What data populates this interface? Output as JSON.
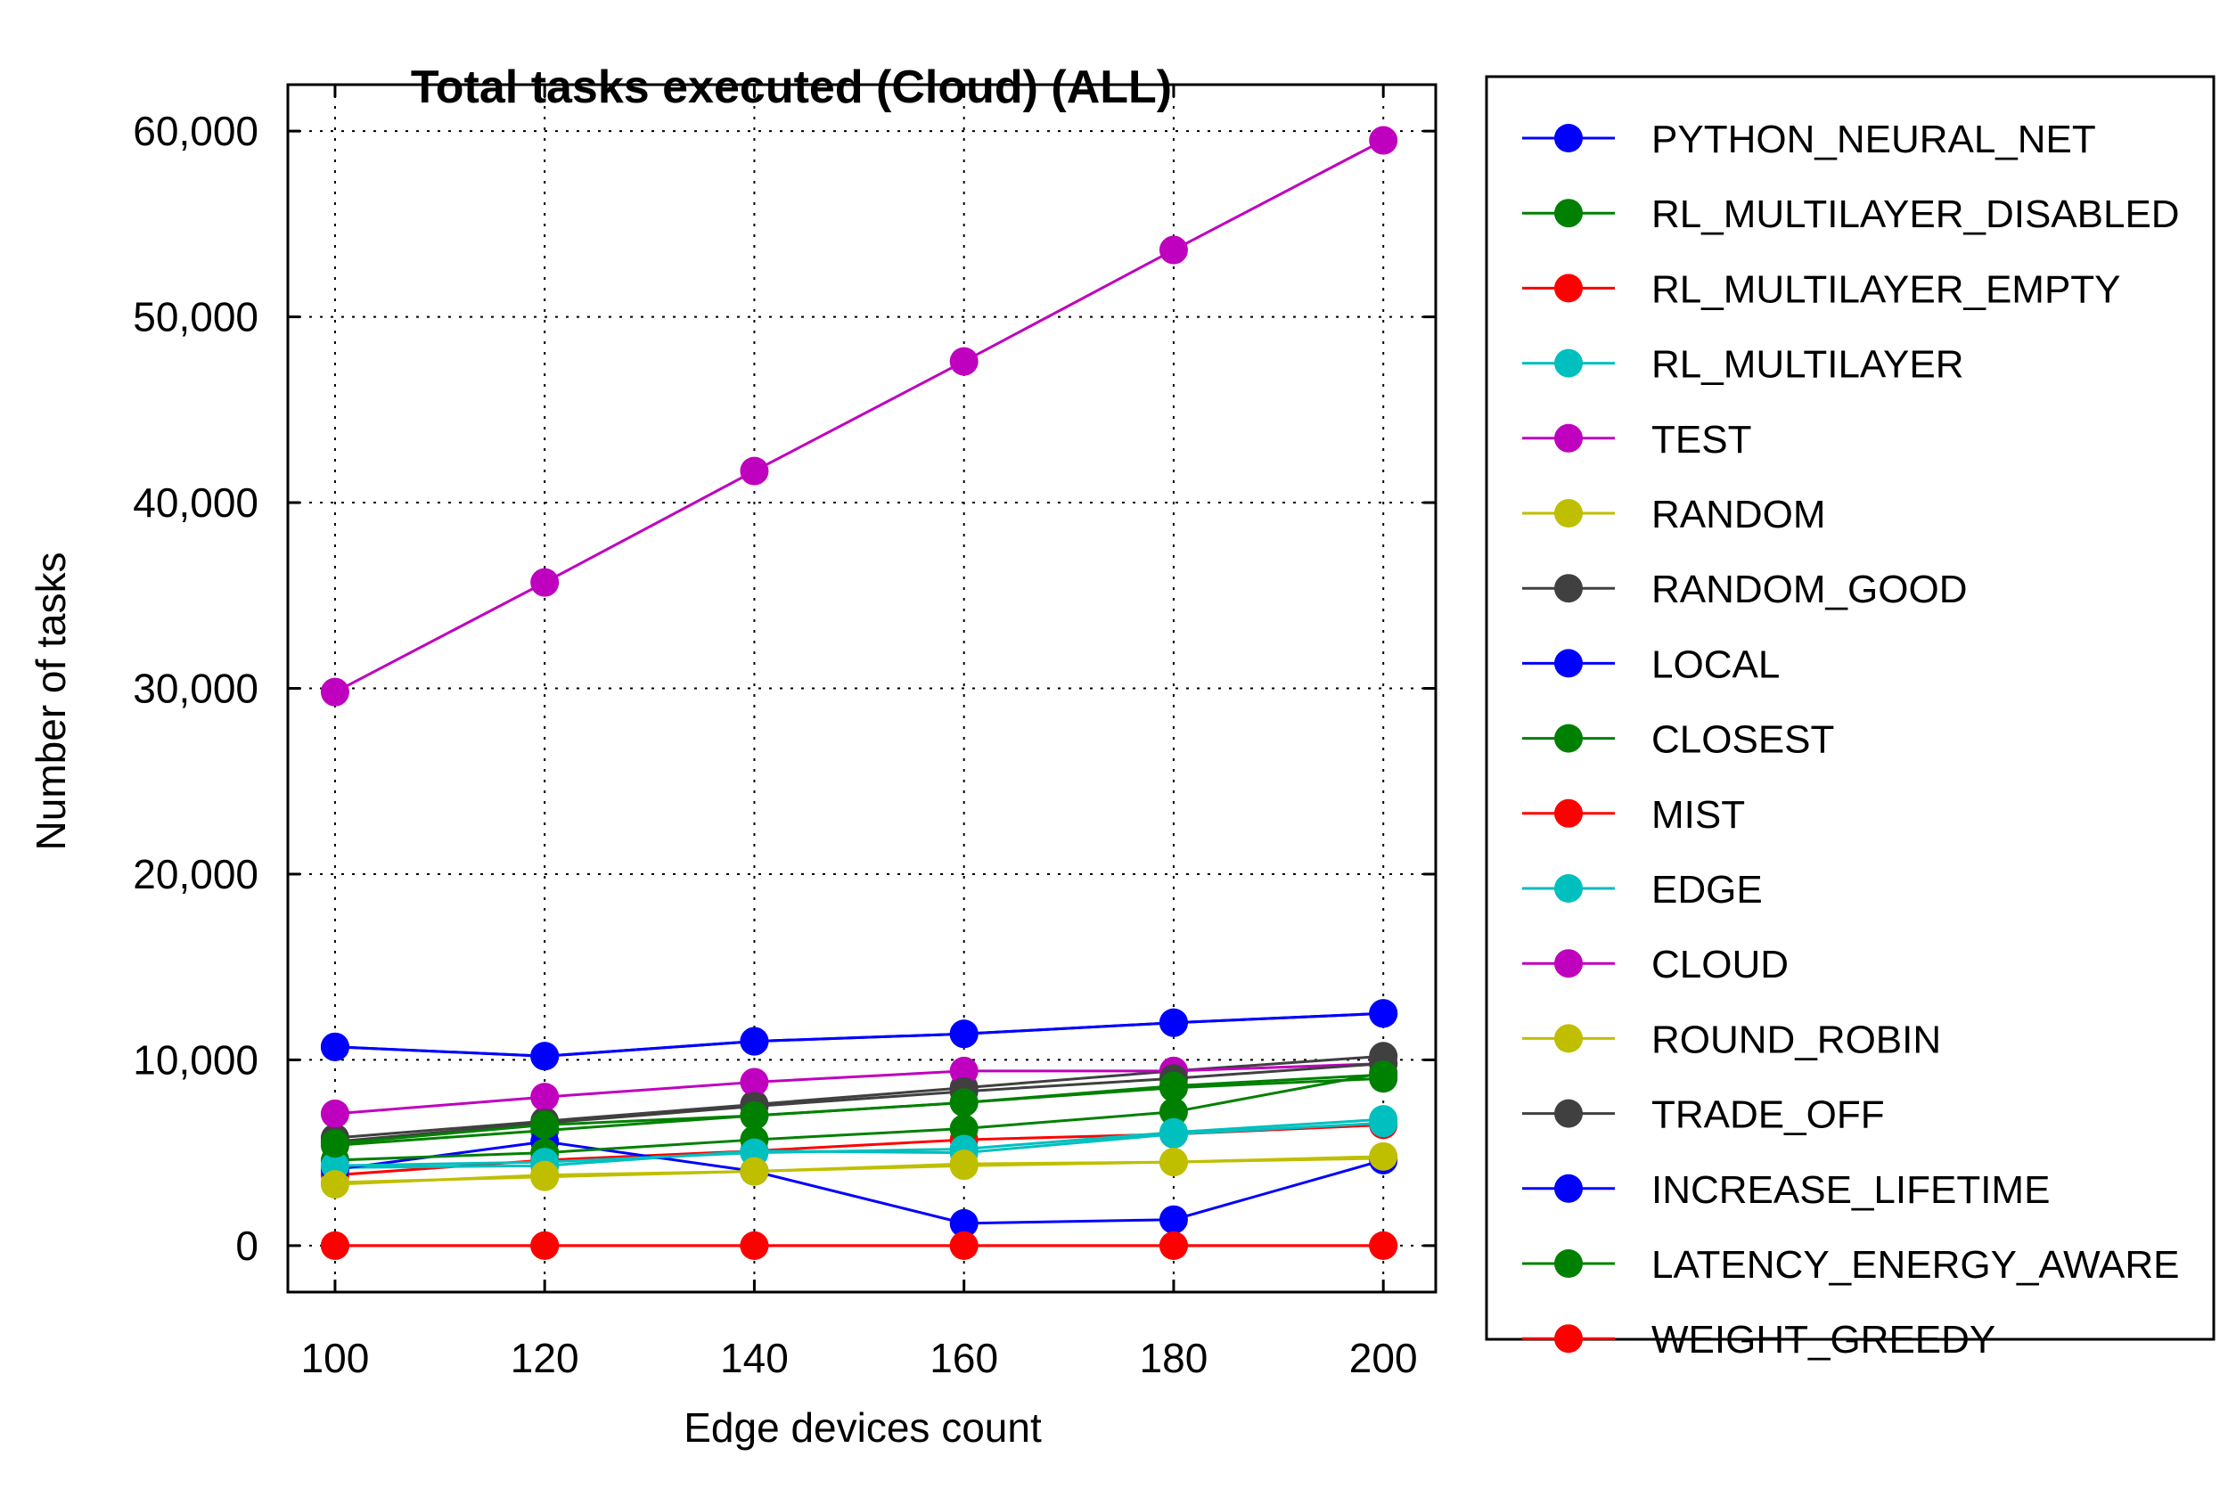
{
  "chart_data": {
    "type": "line",
    "title": "Total tasks executed (Cloud) (ALL)",
    "xlabel": "Edge devices count",
    "ylabel": "Number of tasks",
    "x": [
      100,
      120,
      140,
      160,
      180,
      200
    ],
    "x_tick_labels": [
      "100",
      "120",
      "140",
      "160",
      "180",
      "200"
    ],
    "y_ticks": [
      0,
      10000,
      20000,
      30000,
      40000,
      50000,
      60000
    ],
    "y_tick_labels": [
      "0",
      "10,000",
      "20,000",
      "30,000",
      "40,000",
      "50,000",
      "60,000"
    ],
    "xlim": [
      95.5,
      205
    ],
    "ylim": [
      -2500,
      62500
    ],
    "grid": true,
    "legend_position": "right-outside",
    "series": [
      {
        "name": "PYTHON_NEURAL_NET",
        "color": "#0000ff",
        "values": [
          10700,
          10200,
          11000,
          11400,
          12000,
          12500
        ]
      },
      {
        "name": "RL_MULTILAYER_DISABLED",
        "color": "#008000",
        "values": [
          5400,
          6200,
          7000,
          7700,
          8500,
          9000
        ]
      },
      {
        "name": "RL_MULTILAYER_EMPTY",
        "color": "#ff0000",
        "values": [
          3800,
          4600,
          5100,
          5700,
          6000,
          6500
        ]
      },
      {
        "name": "RL_MULTILAYER",
        "color": "#00bfbf",
        "values": [
          4200,
          4300,
          5100,
          5000,
          6000,
          6600
        ]
      },
      {
        "name": "TEST",
        "color": "#bf00bf",
        "values": [
          29800,
          35700,
          41700,
          47600,
          53600,
          59500
        ]
      },
      {
        "name": "RANDOM",
        "color": "#bfbf00",
        "values": [
          3400,
          3700,
          4000,
          4300,
          4500,
          4700
        ]
      },
      {
        "name": "RANDOM_GOOD",
        "color": "#404040",
        "values": [
          5800,
          6700,
          7600,
          8500,
          9400,
          10200
        ]
      },
      {
        "name": "LOCAL",
        "color": "#0000ff",
        "values": [
          4100,
          5600,
          4000,
          1200,
          1400,
          4600
        ]
      },
      {
        "name": "CLOSEST",
        "color": "#008000",
        "values": [
          4600,
          5000,
          5700,
          6300,
          7200,
          9300
        ]
      },
      {
        "name": "MIST",
        "color": "#ff0000",
        "values": [
          0,
          0,
          0,
          0,
          0,
          0
        ]
      },
      {
        "name": "EDGE",
        "color": "#00bfbf",
        "values": [
          4300,
          4500,
          5000,
          5200,
          6100,
          6800
        ]
      },
      {
        "name": "CLOUD",
        "color": "#bf00bf",
        "values": [
          7100,
          8000,
          8800,
          9400,
          9400,
          9800
        ]
      },
      {
        "name": "ROUND_ROBIN",
        "color": "#bfbf00",
        "values": [
          3300,
          3800,
          4000,
          4400,
          4500,
          4800
        ]
      },
      {
        "name": "TRADE_OFF",
        "color": "#404040",
        "values": [
          5600,
          6600,
          7500,
          8300,
          9000,
          9800
        ]
      },
      {
        "name": "INCREASE_LIFETIME",
        "color": "#0000ff",
        "values": [
          10700,
          10200,
          11000,
          11400,
          12000,
          12500
        ]
      },
      {
        "name": "LATENCY_ENERGY_AWARE",
        "color": "#008000",
        "values": [
          5500,
          6500,
          7000,
          7700,
          8600,
          9200
        ]
      },
      {
        "name": "WEIGHT_GREEDY",
        "color": "#ff0000",
        "values": [
          0,
          0,
          0,
          0,
          0,
          0
        ]
      }
    ]
  }
}
